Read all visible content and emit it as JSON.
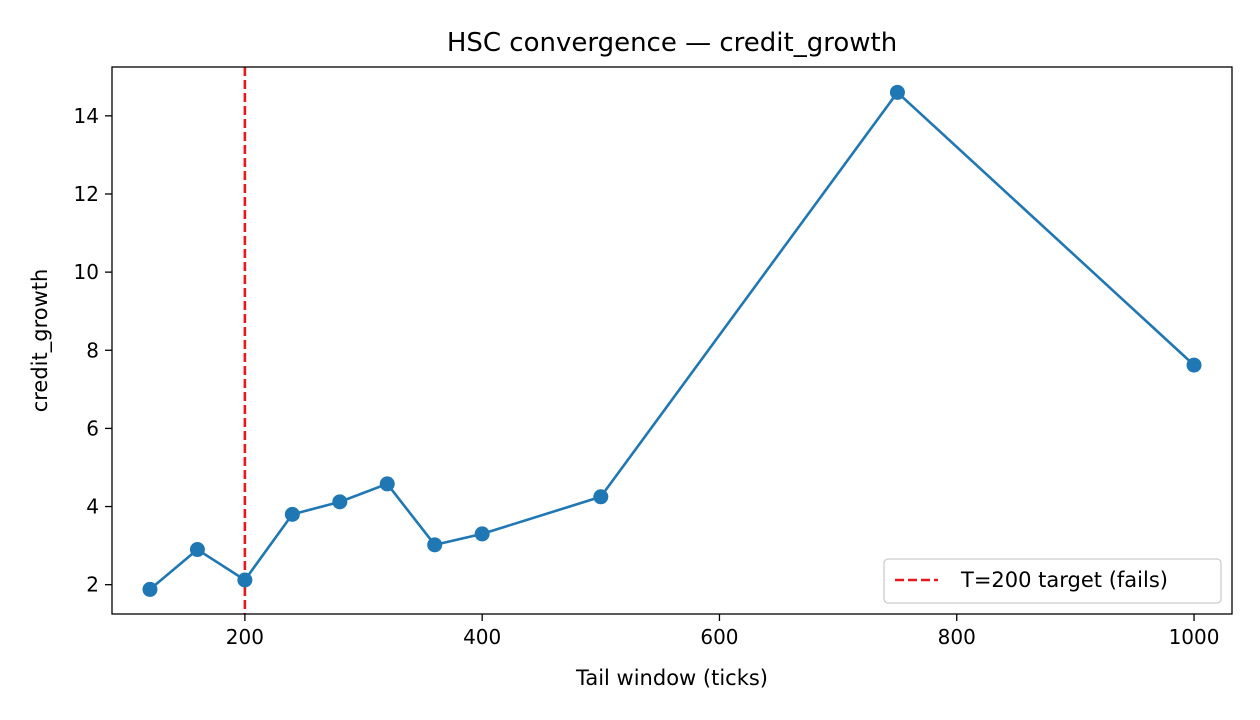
{
  "chart_data": {
    "type": "line",
    "title": "HSC convergence — credit_growth",
    "xlabel": "Tail window (ticks)",
    "ylabel": "credit_growth",
    "xlim": [
      88,
      1032
    ],
    "ylim": [
      1.25,
      15.25
    ],
    "xticks": [
      200,
      400,
      600,
      800,
      1000
    ],
    "yticks": [
      2,
      4,
      6,
      8,
      10,
      12,
      14
    ],
    "grid": false,
    "series": [
      {
        "color": "#1f77b4",
        "x": [
          120,
          160,
          200,
          240,
          280,
          320,
          360,
          400,
          500,
          750,
          1000
        ],
        "y": [
          1.88,
          2.9,
          2.12,
          3.8,
          4.12,
          4.58,
          3.02,
          3.3,
          4.25,
          14.6,
          7.62
        ]
      }
    ],
    "reference_line": {
      "orientation": "vertical",
      "x": 200,
      "color": "#e8191c",
      "style": "dashed",
      "label": "T=200 target (fails)"
    },
    "legend": {
      "placement": "lower-right"
    }
  }
}
